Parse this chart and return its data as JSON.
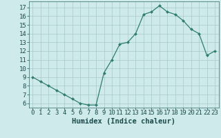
{
  "x": [
    0,
    1,
    2,
    3,
    4,
    5,
    6,
    7,
    8,
    9,
    10,
    11,
    12,
    13,
    14,
    15,
    16,
    17,
    18,
    19,
    20,
    21,
    22,
    23
  ],
  "y": [
    9.0,
    8.5,
    8.0,
    7.5,
    7.0,
    6.5,
    6.0,
    5.8,
    5.8,
    9.5,
    11.0,
    12.8,
    13.0,
    14.0,
    16.2,
    16.5,
    17.2,
    16.5,
    16.2,
    15.5,
    14.5,
    14.0,
    11.5,
    12.0
  ],
  "xlabel": "Humidex (Indice chaleur)",
  "xlim": [
    -0.5,
    23.5
  ],
  "ylim": [
    5.5,
    17.7
  ],
  "yticks": [
    6,
    7,
    8,
    9,
    10,
    11,
    12,
    13,
    14,
    15,
    16,
    17
  ],
  "xticks": [
    0,
    1,
    2,
    3,
    4,
    5,
    6,
    7,
    8,
    9,
    10,
    11,
    12,
    13,
    14,
    15,
    16,
    17,
    18,
    19,
    20,
    21,
    22,
    23
  ],
  "line_color": "#2e7d6e",
  "marker_color": "#2e7d6e",
  "bg_color": "#ceeaea",
  "grid_color": "#a8c8c8",
  "axes_color": "#4a7a7a",
  "label_color": "#1a4a4a",
  "tick_label_fontsize": 6.5,
  "xlabel_fontsize": 7.5
}
